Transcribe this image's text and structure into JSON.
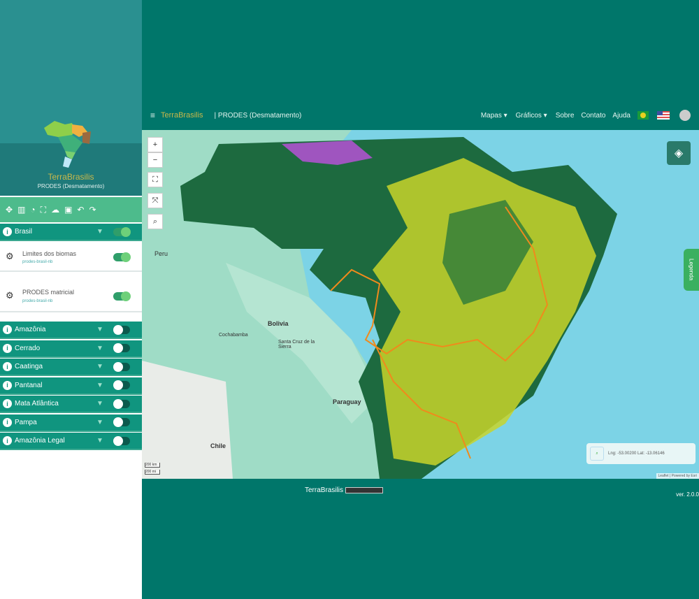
{
  "brand": {
    "title": "TerraBrasilis",
    "subtitle": "PRODES (Desmatamento)"
  },
  "toolbar": {
    "icons": [
      "crosshair-icon",
      "book-icon",
      "history-icon",
      "fullscreen-icon",
      "cloud-upload-icon",
      "document-icon",
      "undo-icon",
      "redo-icon"
    ]
  },
  "group": {
    "label": "Brasil",
    "on": true
  },
  "layers": [
    {
      "name": "Limites dos biomas",
      "source": "prodes-brasil-nb",
      "on": true
    },
    {
      "name": "PRODES matricial",
      "source": "prodes-brasil-nb",
      "on": true
    }
  ],
  "biomes": [
    {
      "label": "Amazônia"
    },
    {
      "label": "Cerrado"
    },
    {
      "label": "Caatinga"
    },
    {
      "label": "Pantanal"
    },
    {
      "label": "Mata Atlântica"
    },
    {
      "label": "Pampa"
    },
    {
      "label": "Amazônia Legal"
    }
  ],
  "nav": {
    "brand": "TerraBrasilis",
    "module": "| PRODES (Desmatamento)",
    "items": [
      "Mapas",
      "Gráficos",
      "Sobre",
      "Contato",
      "Ajuda"
    ]
  },
  "map": {
    "labels": {
      "peru": "Peru",
      "bolivia": "Bolivia",
      "paraguay": "Paraguay",
      "chile": "Chile",
      "cochabamba": "Cochabamba",
      "santacruz": "Santa Cruz de la Sierra"
    },
    "legend_tab": "Legenda",
    "coords": "Lng: -53.00200 Lat: -13.06146",
    "scale1": "200 km",
    "scale2": "200 mi",
    "attribution": "Leaflet | Powered by Esri"
  },
  "footer": {
    "brand": "TerraBrasilis",
    "version": "ver. 2.0.0"
  },
  "colors": {
    "primary": "#00766a",
    "sidebar_header": "#2a9090",
    "toolbar": "#4dbb8c",
    "forest": "#155a3a",
    "deforestation": "#e6e62a",
    "biome_border": "#f08a1c"
  }
}
